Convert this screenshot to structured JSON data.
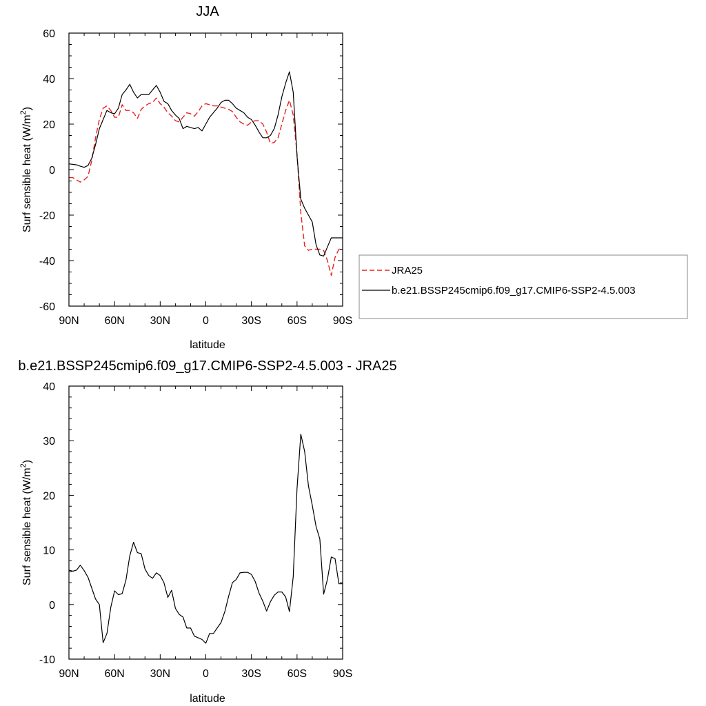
{
  "chart_data": [
    {
      "type": "line",
      "title": "JJA",
      "xlabel": "latitude",
      "ylabel": "Surf sensible heat (W/m",
      "ylabel_sup": "2",
      "ylabel_tail": ")",
      "xlim": [
        90,
        -90
      ],
      "ylim": [
        -60,
        60
      ],
      "xticks": [
        90,
        60,
        30,
        0,
        -30,
        -60,
        -90
      ],
      "xtick_labels": [
        "90N",
        "60N",
        "30N",
        "0",
        "30S",
        "60S",
        "90S"
      ],
      "yticks": [
        -60,
        -40,
        -20,
        0,
        20,
        40,
        60
      ],
      "ytick_labels": [
        "-60",
        "-40",
        "-20",
        "0",
        "20",
        "40",
        "60"
      ],
      "legend_placement": "outside-right",
      "series": [
        {
          "name": "JRA25",
          "color": "#e8211f",
          "dash": "dashed",
          "x": [
            90,
            87.5,
            85,
            82.5,
            80,
            77.5,
            75,
            72.5,
            70,
            67.5,
            65,
            62.5,
            60,
            57.5,
            55,
            52.5,
            50,
            47.5,
            45,
            42.5,
            40,
            37.5,
            35,
            32.5,
            30,
            27.5,
            25,
            22.5,
            20,
            17.5,
            15,
            12.5,
            10,
            7.5,
            5,
            2.5,
            0,
            -2.5,
            -5,
            -7.5,
            -10,
            -12.5,
            -15,
            -17.5,
            -20,
            -22.5,
            -25,
            -27.5,
            -30,
            -32.5,
            -35,
            -37.5,
            -40,
            -42.5,
            -45,
            -47.5,
            -50,
            -52.5,
            -55,
            -57.5,
            -60,
            -62.5,
            -65,
            -67.5,
            -70,
            -72.5,
            -75,
            -77.5,
            -80,
            -82.5,
            -85,
            -87.5,
            -90
          ],
          "y": [
            -3.5,
            -3.5,
            -4.5,
            -5.5,
            -4.5,
            -3,
            4,
            14,
            22,
            27,
            28,
            26,
            23,
            23,
            28.5,
            26,
            26,
            25,
            22.5,
            26.5,
            28,
            29,
            29.5,
            31.5,
            29,
            27.5,
            25,
            23.5,
            21.5,
            21,
            23,
            25,
            24.5,
            23.5,
            25.5,
            28,
            29,
            28.5,
            28,
            28,
            27.5,
            27,
            26.5,
            25.5,
            23,
            21,
            20,
            19.5,
            21,
            21.5,
            21.5,
            20,
            16.5,
            11.5,
            12,
            14,
            20,
            26,
            30.5,
            24,
            7,
            -19,
            -33.5,
            -35.5,
            -35,
            -35,
            -35,
            -35.5,
            -40,
            -46.5,
            -38.5,
            -35,
            -34.5
          ]
        },
        {
          "name": "b.e21.BSSP245cmip6.f09_g17.CMIP6-SSP2-4.5.003",
          "color": "#000000",
          "dash": "solid",
          "x": [
            90,
            87.5,
            85,
            82.5,
            80,
            77.5,
            75,
            72.5,
            70,
            67.5,
            65,
            62.5,
            60,
            57.5,
            55,
            52.5,
            50,
            47.5,
            45,
            42.5,
            40,
            37.5,
            35,
            32.5,
            30,
            27.5,
            25,
            22.5,
            20,
            17.5,
            15,
            12.5,
            10,
            7.5,
            5,
            2.5,
            0,
            -2.5,
            -5,
            -7.5,
            -10,
            -12.5,
            -15,
            -17.5,
            -20,
            -22.5,
            -25,
            -27.5,
            -30,
            -32.5,
            -35,
            -37.5,
            -40,
            -42.5,
            -45,
            -47.5,
            -50,
            -52.5,
            -55,
            -57.5,
            -60,
            -62.5,
            -65,
            -67.5,
            -70,
            -72.5,
            -75,
            -77.5,
            -80,
            -82.5,
            -85,
            -87.5,
            -90
          ],
          "y": [
            2.5,
            2.3,
            2.1,
            1.5,
            1,
            1.8,
            5,
            11,
            18,
            22,
            26,
            25,
            24.5,
            27,
            33,
            35,
            37.5,
            34,
            31.5,
            33,
            33,
            33,
            35,
            37,
            34,
            30,
            29,
            26,
            24,
            22.5,
            18,
            19,
            18.5,
            18,
            18.5,
            17,
            20,
            23,
            25,
            27,
            29.5,
            30.5,
            30.5,
            29,
            27,
            26,
            25,
            23,
            22,
            19.5,
            16.5,
            14,
            14,
            15,
            18,
            24,
            32,
            38,
            43,
            34,
            6,
            -13,
            -17,
            -20,
            -23,
            -33,
            -37.5,
            -38,
            -34,
            -30,
            -30,
            -30,
            -30
          ]
        }
      ]
    },
    {
      "type": "line",
      "title": "b.e21.BSSP245cmip6.f09_g17.CMIP6-SSP2-4.5.003 - JRA25",
      "xlabel": "latitude",
      "ylabel": "Surf sensible heat (W/m",
      "ylabel_sup": "2",
      "ylabel_tail": ")",
      "xlim": [
        90,
        -90
      ],
      "ylim": [
        -10,
        40
      ],
      "xticks": [
        90,
        60,
        30,
        0,
        -30,
        -60,
        -90
      ],
      "xtick_labels": [
        "90N",
        "60N",
        "30N",
        "0",
        "30S",
        "60S",
        "90S"
      ],
      "yticks": [
        -10,
        0,
        10,
        20,
        30,
        40
      ],
      "ytick_labels": [
        "-10",
        "0",
        "10",
        "20",
        "30",
        "40"
      ],
      "series": [
        {
          "color": "#000000",
          "dash": "solid",
          "x": [
            90,
            87.5,
            85,
            82.5,
            80,
            77.5,
            75,
            72.5,
            70,
            67.5,
            65,
            62.5,
            60,
            57.5,
            55,
            52.5,
            50,
            47.5,
            45,
            42.5,
            40,
            37.5,
            35,
            32.5,
            30,
            27.5,
            25,
            22.5,
            20,
            17.5,
            15,
            12.5,
            10,
            7.5,
            5,
            2.5,
            0,
            -2.5,
            -5,
            -7.5,
            -10,
            -12.5,
            -15,
            -17.5,
            -20,
            -22.5,
            -25,
            -27.5,
            -30,
            -32.5,
            -35,
            -37.5,
            -40,
            -42.5,
            -45,
            -47.5,
            -50,
            -52.5,
            -55,
            -57.5,
            -60,
            -62.5,
            -65,
            -67.5,
            -70,
            -72.5,
            -75,
            -77.5,
            -80,
            -82.5,
            -85,
            -87.5,
            -90
          ],
          "y": [
            6.3,
            6.1,
            6.3,
            7.2,
            6.2,
            5,
            3,
            1,
            0,
            -7,
            -5.3,
            -0.5,
            2.5,
            1.8,
            2,
            4.5,
            8.9,
            11.4,
            9.5,
            9.3,
            6.5,
            5.3,
            4.8,
            5.8,
            5.3,
            4,
            1.3,
            2.6,
            -0.7,
            -1.8,
            -2.3,
            -4.3,
            -4.3,
            -5.8,
            -6.1,
            -6.4,
            -7.1,
            -5.3,
            -5.3,
            -4.3,
            -3.3,
            -1.3,
            1.5,
            4,
            4.6,
            5.8,
            5.9,
            5.9,
            5.5,
            4.2,
            2.1,
            0.6,
            -1.2,
            0.5,
            1.7,
            2.3,
            2.3,
            1.4,
            -1.3,
            5.1,
            21.2,
            31.2,
            28,
            21.7,
            18.2,
            14.3,
            12,
            1.9,
            4.6,
            8.7,
            8.4,
            3.8,
            3.8
          ]
        }
      ]
    }
  ]
}
